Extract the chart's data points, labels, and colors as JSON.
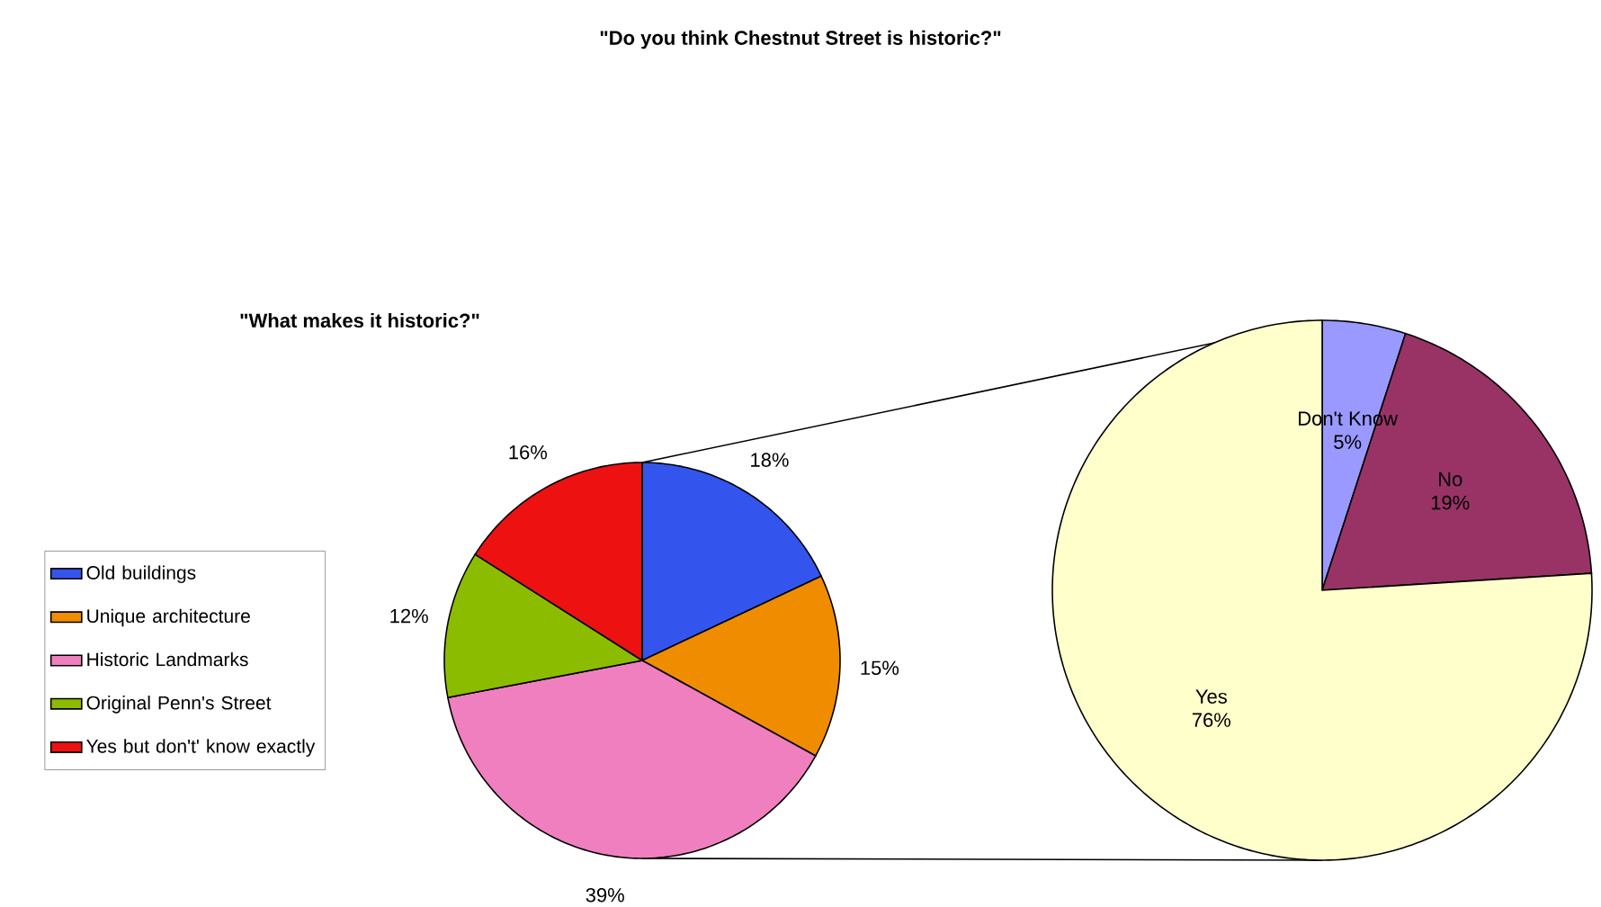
{
  "chart_data": [
    {
      "type": "pie",
      "title": "\"Do you think Chestnut Street is historic?\"",
      "categories": [
        "Don't Know",
        "No",
        "Yes"
      ],
      "values": [
        5,
        19,
        76
      ],
      "value_labels": [
        "5%",
        "19%",
        "76%"
      ],
      "colors": [
        "#9999ff",
        "#993366",
        "#ffffcc"
      ]
    },
    {
      "type": "pie",
      "title": "\"What makes it historic?\"",
      "categories": [
        "Old buildings",
        "Unique architecture",
        "Historic Landmarks",
        "Original Penn's Street",
        "Yes but don't' know exactly"
      ],
      "values": [
        18,
        15,
        39,
        12,
        16
      ],
      "value_labels": [
        "18%",
        "15%",
        "39%",
        "12%",
        "16%"
      ],
      "colors": [
        "#3355ee",
        "#f08c00",
        "#f07fc0",
        "#8cbc00",
        "#ee1111"
      ],
      "legend": "left"
    }
  ]
}
